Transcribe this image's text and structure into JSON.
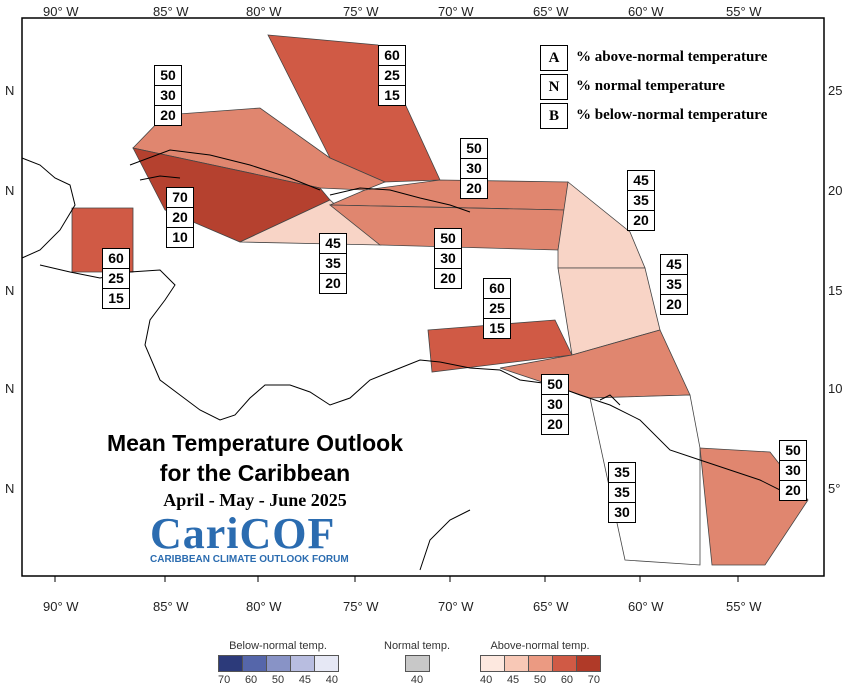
{
  "map": {
    "lon_ticks": [
      "90° W",
      "85° W",
      "80° W",
      "75° W",
      "70° W",
      "65° W",
      "60° W",
      "55° W"
    ],
    "lat_ticks_left": [
      "N",
      "N",
      "N",
      "N",
      "N"
    ],
    "lat_ticks_right": [
      "25",
      "20",
      "15",
      "10",
      "5°"
    ]
  },
  "legend_key": [
    {
      "letter": "A",
      "text": "% above-normal temperature"
    },
    {
      "letter": "N",
      "text": "% normal temperature"
    },
    {
      "letter": "B",
      "text": "% below-normal temperature"
    }
  ],
  "regions": [
    {
      "id": "bahamas",
      "values": [
        "60",
        "25",
        "15"
      ],
      "color": "#d05a45"
    },
    {
      "id": "cuba",
      "values": [
        "50",
        "30",
        "20"
      ],
      "color": "#e0866f"
    },
    {
      "id": "cayman-jamaica-sea",
      "values": [
        "70",
        "20",
        "10"
      ],
      "color": "#b5412f"
    },
    {
      "id": "belize",
      "values": [
        "60",
        "25",
        "15"
      ],
      "color": "#d05a45"
    },
    {
      "id": "jamaica-south",
      "values": [
        "45",
        "35",
        "20"
      ],
      "color": "#f8d4c6"
    },
    {
      "id": "hispaniola-north",
      "values": [
        "50",
        "30",
        "20"
      ],
      "color": "#e0866f"
    },
    {
      "id": "hispaniola-south",
      "values": [
        "50",
        "30",
        "20"
      ],
      "color": "#e0866f"
    },
    {
      "id": "leeward",
      "values": [
        "45",
        "35",
        "20"
      ],
      "color": "#f8d4c6"
    },
    {
      "id": "windward",
      "values": [
        "45",
        "35",
        "20"
      ],
      "color": "#f8d4c6"
    },
    {
      "id": "abc-islands",
      "values": [
        "60",
        "25",
        "15"
      ],
      "color": "#d05a45"
    },
    {
      "id": "trinidad",
      "values": [
        "50",
        "30",
        "20"
      ],
      "color": "#e0866f"
    },
    {
      "id": "guyana",
      "values": [
        "35",
        "35",
        "30"
      ],
      "color": "#ffffff"
    },
    {
      "id": "suriname-guiana",
      "values": [
        "50",
        "30",
        "20"
      ],
      "color": "#e0866f"
    }
  ],
  "title": {
    "line1": "Mean Temperature Outlook",
    "line2": "for the Caribbean",
    "period": "April - May - June 2025"
  },
  "logo": {
    "main": "CariCOF",
    "sub": "CARIBBEAN CLIMATE OUTLOOK FORUM"
  },
  "scale": {
    "below_label": "Below-normal temp.",
    "below_values": [
      "70",
      "60",
      "50",
      "45",
      "40"
    ],
    "below_colors": [
      "#2c3a7a",
      "#5566aa",
      "#8893c6",
      "#b8bde0",
      "#e6e8f5"
    ],
    "normal_label": "Normal temp.",
    "normal_value": "40",
    "normal_color": "#c8c8c8",
    "above_label": "Above-normal temp.",
    "above_values": [
      "40",
      "45",
      "50",
      "60",
      "70"
    ],
    "above_colors": [
      "#fde8df",
      "#f8c8b6",
      "#eb9a82",
      "#d05a45",
      "#b03a28"
    ]
  }
}
